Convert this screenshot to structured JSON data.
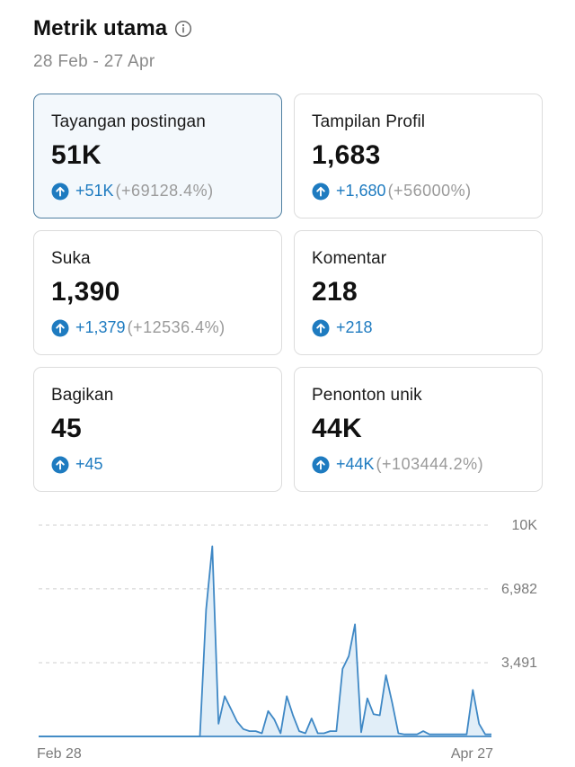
{
  "header": {
    "title": "Metrik utama",
    "date_range": "28 Feb - 27 Apr",
    "info_icon": "info-circle-icon"
  },
  "cards": [
    {
      "label": "Tayangan postingan",
      "value": "51K",
      "delta": "+51K",
      "pct": "(+69128.4%)",
      "selected": true
    },
    {
      "label": "Tampilan Profil",
      "value": "1,683",
      "delta": "+1,680",
      "pct": "(+56000%)"
    },
    {
      "label": "Suka",
      "value": "1,390",
      "delta": "+1,379",
      "pct": "(+12536.4%)"
    },
    {
      "label": "Komentar",
      "value": "218",
      "delta": "+218",
      "pct": ""
    },
    {
      "label": "Bagikan",
      "value": "45",
      "delta": "+45",
      "pct": ""
    },
    {
      "label": "Penonton unik",
      "value": "44K",
      "delta": "+44K",
      "pct": "(+103444.2%)"
    }
  ],
  "colors": {
    "accent": "#1e7bc0",
    "selected_card_bg": "#f3f8fc",
    "selected_card_border": "#4f7fa1",
    "line": "#3f88c5",
    "area": "#d7e8f6"
  },
  "chart_data": {
    "type": "area",
    "x_ticks": [
      "Feb 28",
      "Apr 27"
    ],
    "y_ticks": [
      "10K",
      "6,982",
      "3,491"
    ],
    "ylim": [
      0,
      10000
    ],
    "grid": true,
    "values": [
      0,
      0,
      0,
      0,
      0,
      0,
      0,
      0,
      0,
      0,
      0,
      0,
      0,
      0,
      0,
      0,
      0,
      0,
      0,
      0,
      0,
      0,
      0,
      0,
      0,
      0,
      0,
      6000,
      9000,
      600,
      1900,
      1300,
      700,
      350,
      250,
      250,
      150,
      1200,
      800,
      150,
      1900,
      1000,
      250,
      150,
      850,
      150,
      150,
      250,
      250,
      3200,
      3800,
      5300,
      200,
      1800,
      1050,
      1000,
      2900,
      1600,
      150,
      100,
      100,
      100,
      250,
      100,
      100,
      100,
      100,
      100,
      100,
      100,
      2200,
      600,
      100,
      100
    ]
  }
}
